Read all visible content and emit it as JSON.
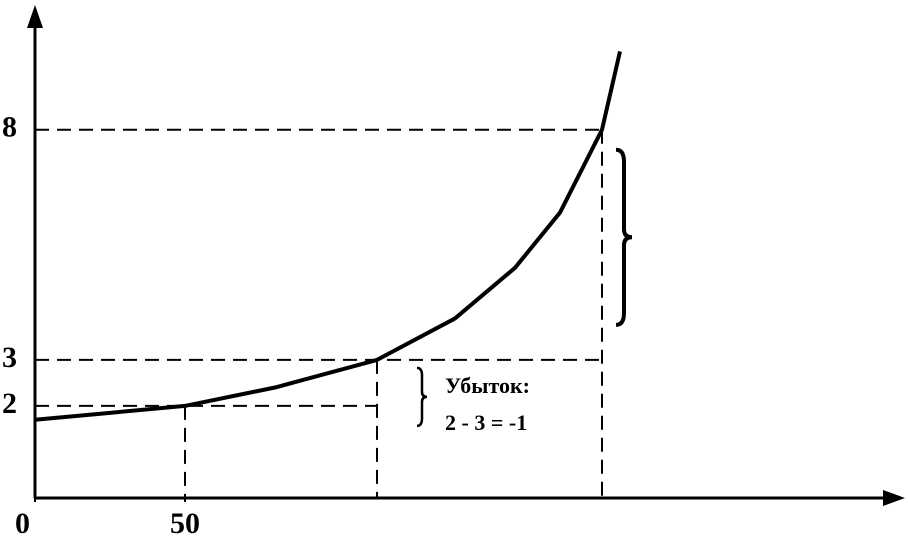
{
  "chart_data": {
    "type": "line",
    "annotations": [
      "Убыток:",
      "2 - 3 = -1"
    ],
    "x": [
      0,
      25,
      50,
      80,
      114,
      140,
      160,
      175,
      189,
      195
    ],
    "series": [
      {
        "color": "#000000",
        "values": [
          1.7,
          1.85,
          2,
          2.4,
          3,
          3.9,
          5,
          6.2,
          8,
          9.7
        ]
      }
    ],
    "xlim": [
      0,
      290
    ],
    "xticks": [
      0,
      50
    ],
    "ylim": [
      0,
      10.6
    ],
    "yticks": [
      2,
      3,
      8
    ]
  }
}
